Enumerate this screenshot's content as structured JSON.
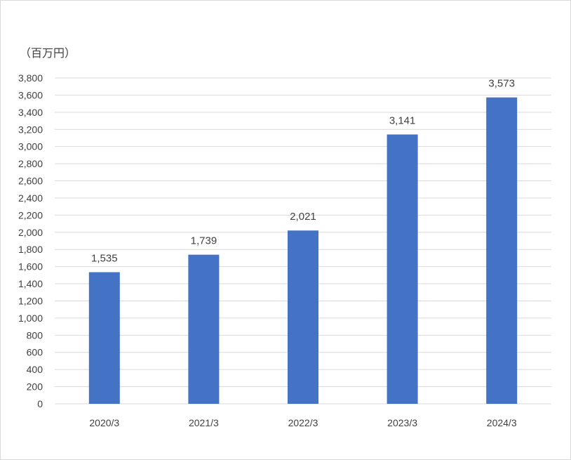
{
  "chart_data": {
    "type": "bar",
    "unit_label": "（百万円）",
    "categories": [
      "2020/3",
      "2021/3",
      "2022/3",
      "2023/3",
      "2024/3"
    ],
    "values": [
      1535,
      1739,
      2021,
      3141,
      3573
    ],
    "data_labels": [
      "1,535",
      "1,739",
      "2,021",
      "3,141",
      "3,573"
    ],
    "y_ticks": [
      0,
      200,
      400,
      600,
      800,
      1000,
      1200,
      1400,
      1600,
      1800,
      2000,
      2200,
      2400,
      2600,
      2800,
      3000,
      3200,
      3400,
      3600,
      3800
    ],
    "y_tick_labels": [
      "0",
      "200",
      "400",
      "600",
      "800",
      "1,000",
      "1,200",
      "1,400",
      "1,600",
      "1,800",
      "2,000",
      "2,200",
      "2,400",
      "2,600",
      "2,800",
      "3,000",
      "3,200",
      "3,400",
      "3,600",
      "3,800"
    ],
    "ylim": [
      0,
      3800
    ],
    "grid": true,
    "legend": "none",
    "bar_color": "#4472c4",
    "grid_color": "#d9d9d9",
    "text_color": "#404040"
  }
}
